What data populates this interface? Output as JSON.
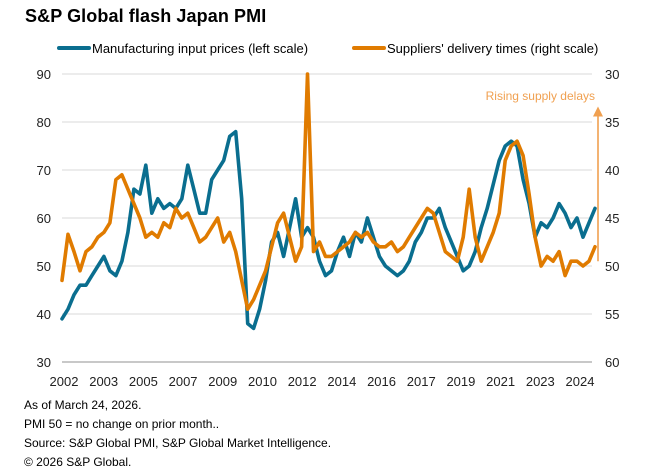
{
  "title": "S&P Global flash Japan PMI",
  "legend": [
    {
      "label": "Manufacturing input prices (left scale)",
      "color": "#0a6e8f"
    },
    {
      "label": "Suppliers' delivery times (right scale)",
      "color": "#e07b00"
    }
  ],
  "annotation": {
    "text": "Rising supply delays",
    "color": "#f0a050"
  },
  "footnotes": [
    "As of March 24, 2026.",
    "PMI 50 = no change on prior month..",
    "Source: S&P Global PMI, S&P Global Market Intelligence.",
    "© 2026 S&P Global."
  ],
  "chart_data": {
    "type": "line",
    "title": "S&P Global flash Japan PMI",
    "xlabel": "",
    "x_tick_labels": [
      "2002",
      "2003",
      "2005",
      "2007",
      "2009",
      "2010",
      "2012",
      "2014",
      "2016",
      "2017",
      "2019",
      "2021",
      "2023",
      "2024"
    ],
    "left_axis": {
      "label": "Manufacturing input prices",
      "ylim": [
        30,
        90
      ],
      "ticks": [
        30,
        40,
        50,
        60,
        70,
        80,
        90
      ]
    },
    "right_axis": {
      "label": "Suppliers' delivery times",
      "ylim": [
        60,
        30
      ],
      "inverted": true,
      "ticks": [
        30,
        35,
        40,
        45,
        50,
        55,
        60
      ]
    },
    "grid": true,
    "legend_position": "top",
    "x_start": "2002-01",
    "x_frequency": "quarterly",
    "series": [
      {
        "name": "Manufacturing input prices (left scale)",
        "axis": "left",
        "color": "#0a6e8f",
        "values": [
          39,
          41,
          44,
          46,
          46,
          48,
          50,
          52,
          49,
          48,
          51,
          57,
          66,
          65,
          71,
          61,
          64,
          62,
          63,
          62,
          64,
          71,
          66,
          61,
          61,
          68,
          70,
          72,
          77,
          78,
          64,
          38,
          37,
          41,
          47,
          55,
          57,
          52,
          58,
          64,
          56,
          58,
          56,
          51,
          48,
          49,
          53,
          56,
          52,
          57,
          55,
          60,
          56,
          52,
          50,
          49,
          48,
          49,
          51,
          55,
          57,
          60,
          60,
          62,
          58,
          55,
          52,
          49,
          50,
          53,
          58,
          62,
          67,
          72,
          75,
          76,
          75,
          68,
          63,
          56,
          59,
          58,
          60,
          63,
          61,
          58,
          60,
          56,
          59,
          62
        ]
      },
      {
        "name": "Suppliers' delivery times (right scale)",
        "axis": "right",
        "color": "#e07b00",
        "values": [
          51.5,
          46.7,
          48.5,
          50.5,
          48.5,
          48.0,
          47.0,
          46.5,
          45.5,
          41.0,
          40.5,
          42.0,
          43.5,
          45.0,
          47.0,
          46.5,
          47.0,
          45.5,
          46.0,
          44.0,
          45.0,
          44.5,
          46.0,
          47.5,
          47.0,
          46.0,
          45.0,
          47.5,
          46.5,
          48.5,
          51.5,
          54.5,
          53.5,
          52.0,
          50.5,
          48.0,
          45.5,
          44.5,
          47.0,
          49.5,
          48.0,
          30.0,
          48.5,
          47.5,
          49.0,
          49.0,
          48.5,
          48.0,
          47.5,
          46.5,
          47.0,
          46.5,
          47.5,
          48.0,
          48.0,
          47.5,
          48.5,
          48.0,
          47.0,
          46.0,
          45.0,
          44.0,
          44.5,
          46.5,
          48.5,
          49.0,
          49.5,
          47.0,
          42.0,
          47.0,
          49.5,
          48.0,
          46.5,
          44.5,
          39.0,
          37.5,
          37.0,
          38.5,
          42.5,
          47.0,
          50.0,
          49.0,
          49.5,
          48.5,
          51.0,
          49.5,
          49.5,
          50.0,
          49.5,
          48.0
        ]
      }
    ]
  }
}
